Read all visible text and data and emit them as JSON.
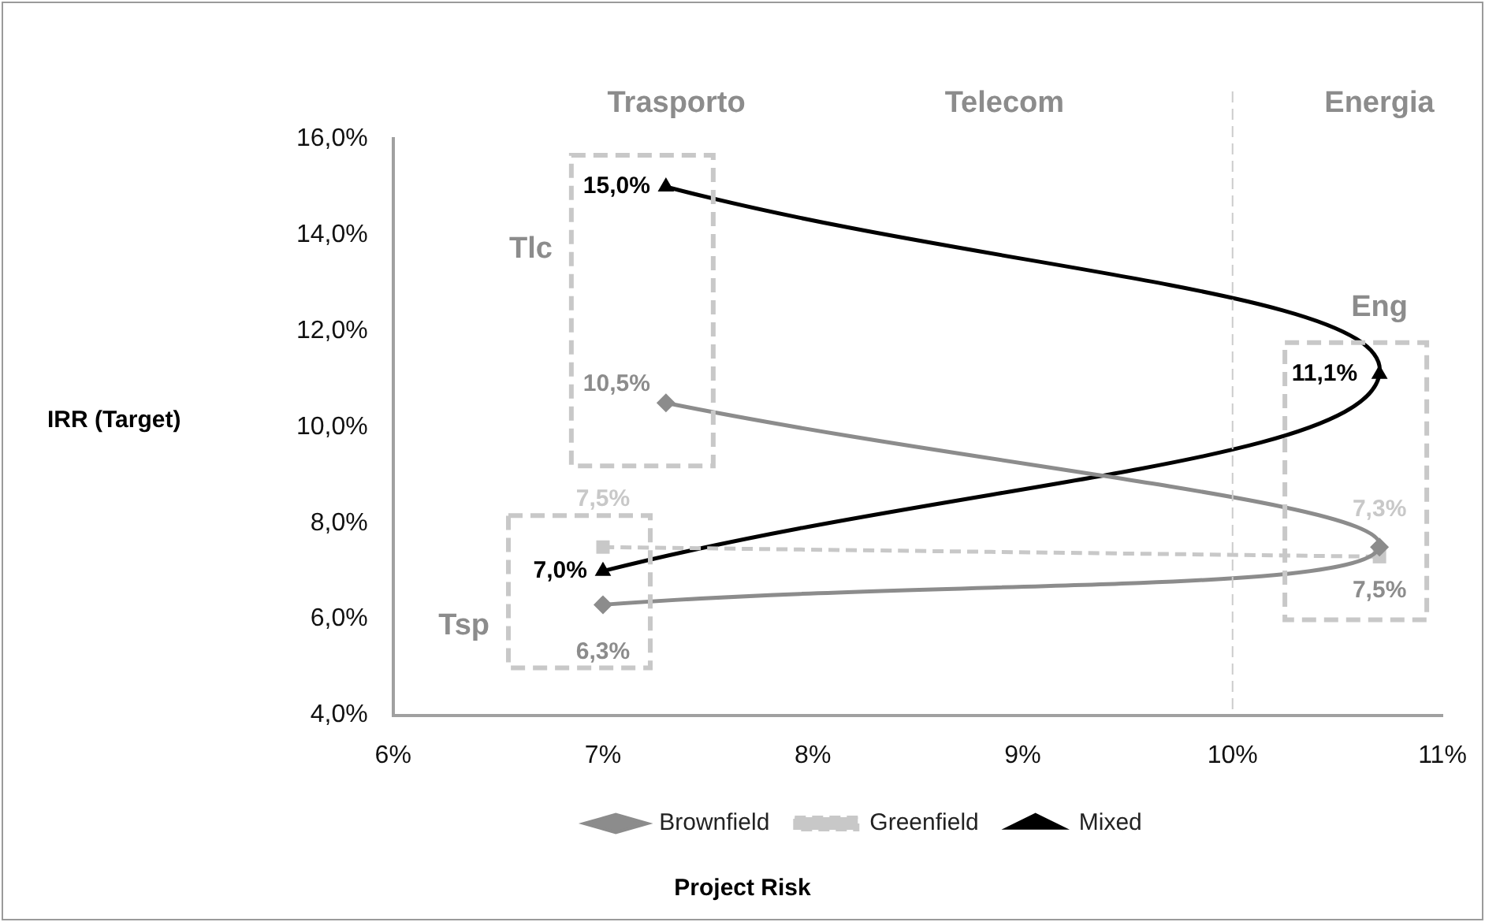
{
  "chart_data": {
    "type": "line",
    "xlabel": "Project Risk",
    "ylabel": "IRR (Target)",
    "xlim": [
      6,
      11
    ],
    "xticks": [
      {
        "value": 6,
        "label": "6%"
      },
      {
        "value": 7,
        "label": "7%"
      },
      {
        "value": 8,
        "label": "8%"
      },
      {
        "value": 9,
        "label": "9%"
      },
      {
        "value": 10,
        "label": "10%"
      },
      {
        "value": 11,
        "label": "11%"
      }
    ],
    "ylim": [
      4,
      16
    ],
    "yticks": [
      {
        "value": 4,
        "label": "4,0%"
      },
      {
        "value": 6,
        "label": "6,0%"
      },
      {
        "value": 8,
        "label": "8,0%"
      },
      {
        "value": 10,
        "label": "10,0%"
      },
      {
        "value": 12,
        "label": "12,0%"
      },
      {
        "value": 14,
        "label": "14,0%"
      },
      {
        "value": 16,
        "label": "16,0%"
      }
    ],
    "series": [
      {
        "name": "Brownfield",
        "color": "#8c8c8c",
        "marker": "diamond",
        "line_style": "solid",
        "x": [
          7,
          10.7,
          7.3
        ],
        "values": [
          6.3,
          7.5,
          10.5
        ],
        "value_labels": [
          "6,3%",
          "7,5%",
          "10,5%"
        ]
      },
      {
        "name": "Greenfield",
        "color": "#c8c8c8",
        "marker": "square",
        "line_style": "dashed",
        "x": [
          7,
          10.7
        ],
        "values": [
          7.5,
          7.3
        ],
        "value_labels": [
          "7,5%",
          "7,3%"
        ]
      },
      {
        "name": "Mixed",
        "color": "#000000",
        "marker": "triangle",
        "line_style": "solid",
        "x": [
          7,
          10.7,
          7.3
        ],
        "values": [
          7.0,
          11.1,
          15.0
        ],
        "value_labels": [
          "7,0%",
          "11,1%",
          "15,0%"
        ]
      }
    ],
    "ref_lines": [
      {
        "axis": "x",
        "value": 10,
        "color": "#cccccc",
        "line_style": "dashed"
      }
    ],
    "annotations": [
      "Trasporto",
      "Telecom",
      "Energia",
      "Tlc",
      "Tsp",
      "Eng"
    ],
    "legend": "bottom",
    "grid": false
  }
}
